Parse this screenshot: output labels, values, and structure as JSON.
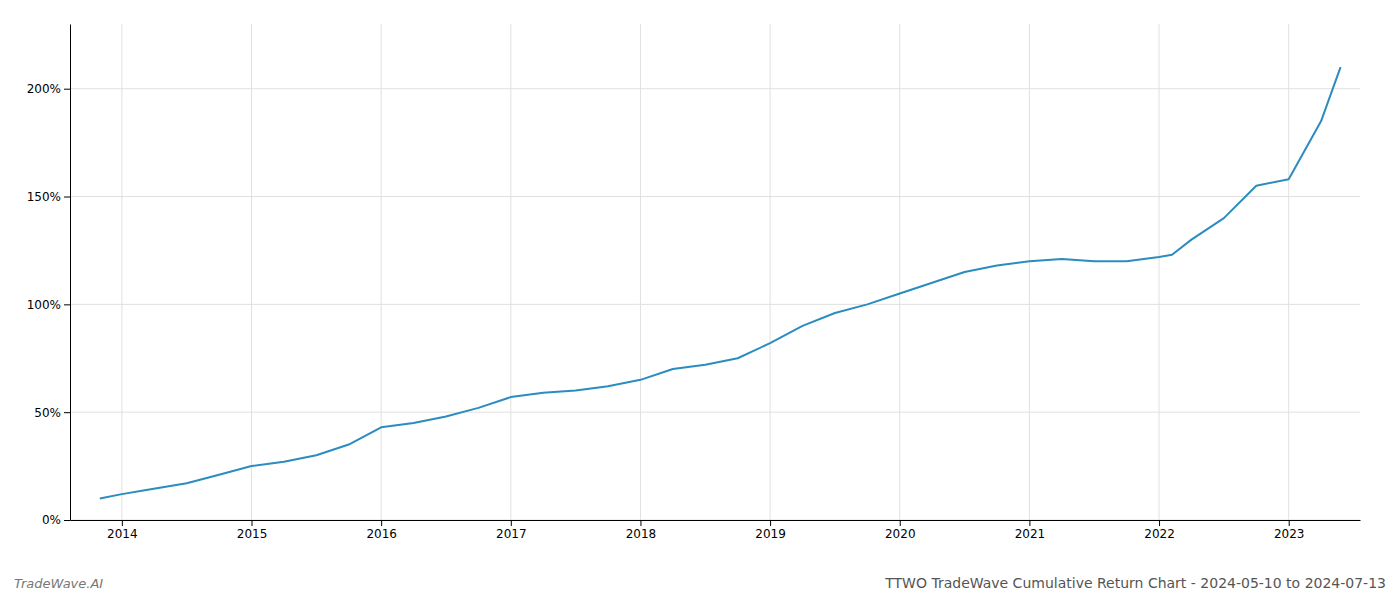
{
  "chart_data": {
    "type": "line",
    "title": "TTWO TradeWave Cumulative Return Chart - 2024-05-10 to 2024-07-13",
    "annotations": [
      "TradeWave.AI"
    ],
    "color": "#2b8cbf",
    "x": [
      2013.83,
      2014.0,
      2014.2,
      2014.5,
      2014.75,
      2015.0,
      2015.25,
      2015.5,
      2015.75,
      2016.0,
      2016.25,
      2016.5,
      2016.75,
      2017.0,
      2017.25,
      2017.5,
      2017.75,
      2018.0,
      2018.25,
      2018.5,
      2018.75,
      2019.0,
      2019.25,
      2019.5,
      2019.75,
      2020.0,
      2020.25,
      2020.5,
      2020.75,
      2021.0,
      2021.25,
      2021.5,
      2021.75,
      2022.0,
      2022.1,
      2022.25,
      2022.5,
      2022.75,
      2023.0,
      2023.25,
      2023.4
    ],
    "values": [
      10,
      12,
      14,
      17,
      21,
      25,
      27,
      30,
      35,
      43,
      45,
      48,
      52,
      57,
      59,
      60,
      62,
      65,
      70,
      72,
      75,
      82,
      90,
      96,
      100,
      105,
      110,
      115,
      118,
      120,
      121,
      120,
      120,
      122,
      123,
      130,
      140,
      155,
      158,
      185,
      210
    ],
    "xlim": [
      2013.6,
      2023.55
    ],
    "ylim": [
      0,
      230
    ],
    "xticks": [
      2014,
      2015,
      2016,
      2017,
      2018,
      2019,
      2020,
      2021,
      2022,
      2023
    ],
    "yticks": [
      {
        "value": 0,
        "label": "0%"
      },
      {
        "value": 50,
        "label": "50%"
      },
      {
        "value": 100,
        "label": "100%"
      },
      {
        "value": 150,
        "label": "150%"
      },
      {
        "value": 200,
        "label": "200%"
      }
    ],
    "grid": true
  }
}
